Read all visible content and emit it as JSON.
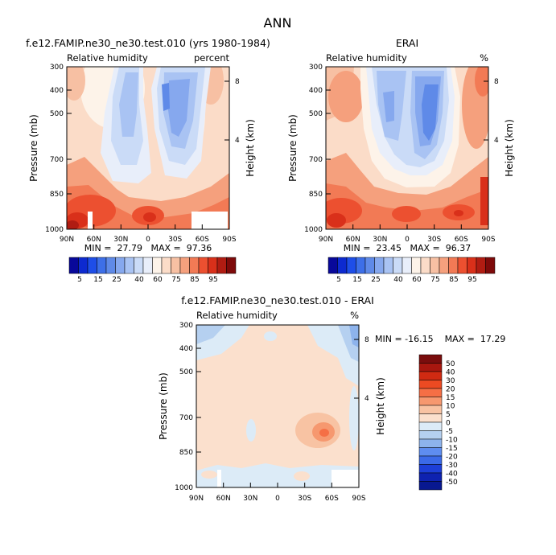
{
  "figure_title": "ANN",
  "chart_data": [
    {
      "type": "heatmap",
      "title": "f.e12.FAMIP.ne30_ne30.test.010 (yrs 1980-1984)",
      "left_label": "Relative humidity",
      "right_label": "percent",
      "ylabel": "Pressure (mb)",
      "ylabel_right": "Height (km)",
      "x_ticks": [
        "90N",
        "60N",
        "30N",
        "0",
        "30S",
        "60S",
        "90S"
      ],
      "y_ticks": [
        "300",
        "400",
        "500",
        "700",
        "850",
        "1000"
      ],
      "y_ticks_right": [
        "8",
        "4"
      ],
      "stats": "MIN =  27.79   MAX =  97.36",
      "min": 27.79,
      "max": 97.36,
      "colorbar_labels": [
        "5",
        "15",
        "25",
        "40",
        "60",
        "75",
        "85",
        "95"
      ]
    },
    {
      "type": "heatmap",
      "title": "ERAI",
      "left_label": "Relative humidity",
      "right_label": "%",
      "ylabel": "Pressure (mb)",
      "ylabel_right": "Height (km)",
      "x_ticks": [
        "90N",
        "60N",
        "30N",
        "0",
        "30S",
        "60S",
        "90S"
      ],
      "y_ticks": [
        "300",
        "400",
        "500",
        "700",
        "850",
        "1000"
      ],
      "y_ticks_right": [
        "8",
        "4"
      ],
      "stats": "MIN =  23.45   MAX =  96.37",
      "min": 23.45,
      "max": 96.37,
      "colorbar_labels": [
        "5",
        "15",
        "25",
        "40",
        "60",
        "75",
        "85",
        "95"
      ]
    },
    {
      "type": "heatmap",
      "title": "f.e12.FAMIP.ne30_ne30.test.010 - ERAI",
      "left_label": "Relative humidity",
      "right_label": "%",
      "ylabel": "Pressure (mb)",
      "ylabel_right": "Height (km)",
      "x_ticks": [
        "90N",
        "60N",
        "30N",
        "0",
        "30S",
        "60S",
        "90S"
      ],
      "y_ticks": [
        "300",
        "400",
        "500",
        "700",
        "850",
        "1000"
      ],
      "y_ticks_right": [
        "8",
        "4"
      ],
      "stats": "MIN = -16.15    MAX =  17.29",
      "min": -16.15,
      "max": 17.29,
      "colorbar_labels": [
        "50",
        "40",
        "30",
        "20",
        "15",
        "10",
        "5",
        "0",
        "-5",
        "-10",
        "-15",
        "-20",
        "-30",
        "-40",
        "-50"
      ]
    }
  ],
  "colors": {
    "abs_scale": [
      "#08089a",
      "#0d2ad0",
      "#1e4ee8",
      "#3d6fe8",
      "#5f8ae8",
      "#86a8ee",
      "#a9c3f3",
      "#cadbf7",
      "#e8eefa",
      "#fdf3e9",
      "#fbdcc8",
      "#f7c0a3",
      "#f5a07d",
      "#f27a55",
      "#ec5030",
      "#d9301a",
      "#b01c12",
      "#7e0a0a"
    ],
    "diff_scale": [
      "#7a0d0d",
      "#a8170f",
      "#d02a12",
      "#ec4a22",
      "#f56f45",
      "#f6986f",
      "#f8c3a3",
      "#fbe0cd",
      "#dcebf7",
      "#b5d0f0",
      "#8db3ec",
      "#5e8df0",
      "#3b6ae8",
      "#1d3fd8",
      "#0e22b0",
      "#081890"
    ]
  }
}
